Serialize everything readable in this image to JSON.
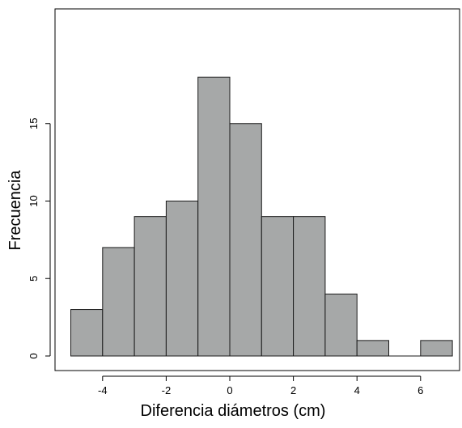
{
  "chart_data": {
    "type": "bar",
    "subtype": "histogram",
    "bins": [
      {
        "start": -5,
        "end": -4,
        "count": 3
      },
      {
        "start": -4,
        "end": -3,
        "count": 7
      },
      {
        "start": -3,
        "end": -2,
        "count": 9
      },
      {
        "start": -2,
        "end": -1,
        "count": 10
      },
      {
        "start": -1,
        "end": 0,
        "count": 18
      },
      {
        "start": 0,
        "end": 1,
        "count": 15
      },
      {
        "start": 1,
        "end": 2,
        "count": 9
      },
      {
        "start": 2,
        "end": 3,
        "count": 9
      },
      {
        "start": 3,
        "end": 4,
        "count": 4
      },
      {
        "start": 4,
        "end": 5,
        "count": 1
      },
      {
        "start": 5,
        "end": 6,
        "count": 0
      },
      {
        "start": 6,
        "end": 7,
        "count": 1
      }
    ],
    "title": "",
    "xlabel": "Diferencia diámetros (cm)",
    "ylabel": "Frecuencia",
    "xlim": [
      -5.3,
      7.3
    ],
    "ylim": [
      0,
      18
    ],
    "xticks": [
      "-4",
      "-2",
      "0",
      "2",
      "4",
      "6"
    ],
    "yticks": [
      "0",
      "5",
      "10",
      "15"
    ],
    "bar_color": "#a6a8a8",
    "edge_color": "#1a1a1a",
    "grid": false
  }
}
